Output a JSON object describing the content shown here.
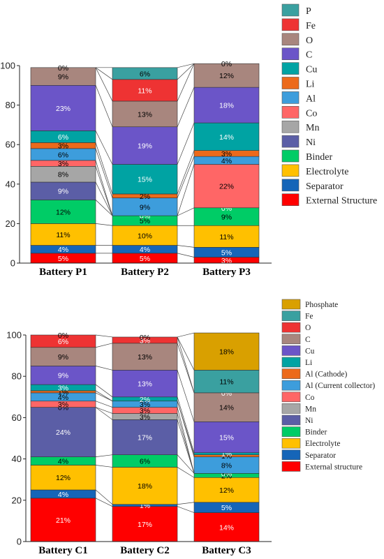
{
  "chart_data": [
    {
      "type": "bar",
      "stacked": true,
      "categories": [
        "Battery P1",
        "Battery P2",
        "Battery P3"
      ],
      "ylim": [
        0,
        100
      ],
      "yticks": [
        0,
        20,
        40,
        60,
        80,
        100
      ],
      "grid": false,
      "legend_position": "right",
      "series": [
        {
          "name": "External Structure",
          "color": "#ff0000",
          "label_color": "#ffffff",
          "values": [
            5,
            5,
            3
          ],
          "labels": [
            "5%",
            "5%",
            "3%"
          ]
        },
        {
          "name": "Separator",
          "color": "#1565b8",
          "label_color": "#ffffff",
          "values": [
            4,
            4,
            5
          ],
          "labels": [
            "4%",
            "4%",
            "5%"
          ]
        },
        {
          "name": "Electrolyte",
          "color": "#ffc000",
          "label_color": "#000000",
          "values": [
            11,
            10,
            11
          ],
          "labels": [
            "11%",
            "10%",
            "11%"
          ]
        },
        {
          "name": "Binder",
          "color": "#00cc66",
          "label_color": "#000000",
          "values": [
            12,
            5,
            9
          ],
          "labels": [
            "12%",
            "5%",
            "9%"
          ]
        },
        {
          "name": "Ni",
          "color": "#5b5ea6",
          "label_color": "#ffffff",
          "values": [
            9,
            0,
            0
          ],
          "labels": [
            "9%",
            "0%",
            "0%"
          ]
        },
        {
          "name": "Mn",
          "color": "#a6a6a6",
          "label_color": "#000000",
          "values": [
            8,
            0,
            0
          ],
          "labels": [
            "8%",
            "",
            ""
          ]
        },
        {
          "name": "Co",
          "color": "#ff6666",
          "label_color": "#000000",
          "values": [
            3,
            0,
            22
          ],
          "labels": [
            "3%",
            "",
            "22%"
          ]
        },
        {
          "name": "Al",
          "color": "#3d9ddc",
          "label_color": "#000000",
          "values": [
            6,
            9,
            4
          ],
          "labels": [
            "6%",
            "9%",
            "4%"
          ]
        },
        {
          "name": "Li",
          "color": "#ec6a1b",
          "label_color": "#000000",
          "values": [
            3,
            2,
            3
          ],
          "labels": [
            "3%",
            "2%",
            "3%"
          ]
        },
        {
          "name": "Cu",
          "color": "#00a3a3",
          "label_color": "#ffffff",
          "values": [
            6,
            15,
            14
          ],
          "labels": [
            "6%",
            "15%",
            "14%"
          ]
        },
        {
          "name": "C",
          "color": "#6b55c8",
          "label_color": "#ffffff",
          "values": [
            23,
            19,
            18
          ],
          "labels": [
            "23%",
            "19%",
            "18%"
          ]
        },
        {
          "name": "O",
          "color": "#a8867e",
          "label_color": "#000000",
          "values": [
            9,
            13,
            12
          ],
          "labels": [
            "9%",
            "13%",
            "12%"
          ]
        },
        {
          "name": "Fe",
          "color": "#ee3333",
          "label_color": "#ffffff",
          "values": [
            0,
            11,
            0
          ],
          "labels": [
            "",
            "11%",
            ""
          ]
        },
        {
          "name": "P",
          "color": "#3aa0a0",
          "label_color": "#000000",
          "values": [
            0,
            6,
            0
          ],
          "labels": [
            "0%",
            "6%",
            "0%"
          ]
        }
      ]
    },
    {
      "type": "bar",
      "stacked": true,
      "categories": [
        "Battery C1",
        "Battery C2",
        "Battery C3"
      ],
      "ylim": [
        0,
        100
      ],
      "yticks": [
        0,
        20,
        40,
        60,
        80,
        100
      ],
      "grid": false,
      "legend_position": "right",
      "series": [
        {
          "name": "External structure",
          "color": "#ff0000",
          "label_color": "#ffffff",
          "values": [
            21,
            17,
            14
          ],
          "labels": [
            "21%",
            "17%",
            "14%"
          ]
        },
        {
          "name": "Separator",
          "color": "#1565b8",
          "label_color": "#ffffff",
          "values": [
            4,
            1,
            5
          ],
          "labels": [
            "4%",
            "1%",
            "5%"
          ]
        },
        {
          "name": "Electrolyte",
          "color": "#ffc000",
          "label_color": "#000000",
          "values": [
            12,
            18,
            12
          ],
          "labels": [
            "12%",
            "18%",
            "12%"
          ]
        },
        {
          "name": "Binder",
          "color": "#00cc66",
          "label_color": "#000000",
          "values": [
            4,
            6,
            2
          ],
          "labels": [
            "4%",
            "6%",
            "2%"
          ]
        },
        {
          "name": "Ni",
          "color": "#5b5ea6",
          "label_color": "#ffffff",
          "values": [
            24,
            17,
            0
          ],
          "labels": [
            "24%",
            "17%",
            "0%"
          ]
        },
        {
          "name": "Mn",
          "color": "#a6a6a6",
          "label_color": "#000000",
          "values": [
            0,
            3,
            0
          ],
          "labels": [
            "0%",
            "3%",
            ""
          ]
        },
        {
          "name": "Co",
          "color": "#ff6666",
          "label_color": "#000000",
          "values": [
            3,
            3,
            0
          ],
          "labels": [
            "3%",
            "3%",
            ""
          ]
        },
        {
          "name": "Al (Current collector)",
          "color": "#3d9ddc",
          "label_color": "#000000",
          "values": [
            4,
            3,
            8
          ],
          "labels": [
            "4%",
            "3%",
            "8%"
          ]
        },
        {
          "name": "Al (Cathode)",
          "color": "#ec6a1b",
          "label_color": "#000000",
          "values": [
            1,
            0,
            1
          ],
          "labels": [
            "1%",
            "",
            "1%"
          ]
        },
        {
          "name": "Li",
          "color": "#00a3a3",
          "label_color": "#ffffff",
          "values": [
            3,
            2,
            1
          ],
          "labels": [
            "3%",
            "2%",
            "1%"
          ]
        },
        {
          "name": "Cu",
          "color": "#6b55c8",
          "label_color": "#ffffff",
          "values": [
            9,
            13,
            15
          ],
          "labels": [
            "9%",
            "13%",
            "15%"
          ]
        },
        {
          "name": "C",
          "color": "#a8867e",
          "label_color": "#000000",
          "values": [
            9,
            13,
            14
          ],
          "labels": [
            "9%",
            "13%",
            "14%"
          ]
        },
        {
          "name": "O",
          "color": "#ee3333",
          "label_color": "#ffffff",
          "values": [
            6,
            3,
            0
          ],
          "labels": [
            "6%",
            "3%",
            "0%"
          ]
        },
        {
          "name": "Fe",
          "color": "#3aa0a0",
          "label_color": "#000000",
          "values": [
            0,
            0,
            11
          ],
          "labels": [
            "0%",
            "0%",
            "11%"
          ]
        },
        {
          "name": "Phosphate",
          "color": "#d9a000",
          "label_color": "#000000",
          "values": [
            0,
            0,
            18
          ],
          "labels": [
            "",
            "",
            "18%"
          ]
        }
      ]
    }
  ]
}
